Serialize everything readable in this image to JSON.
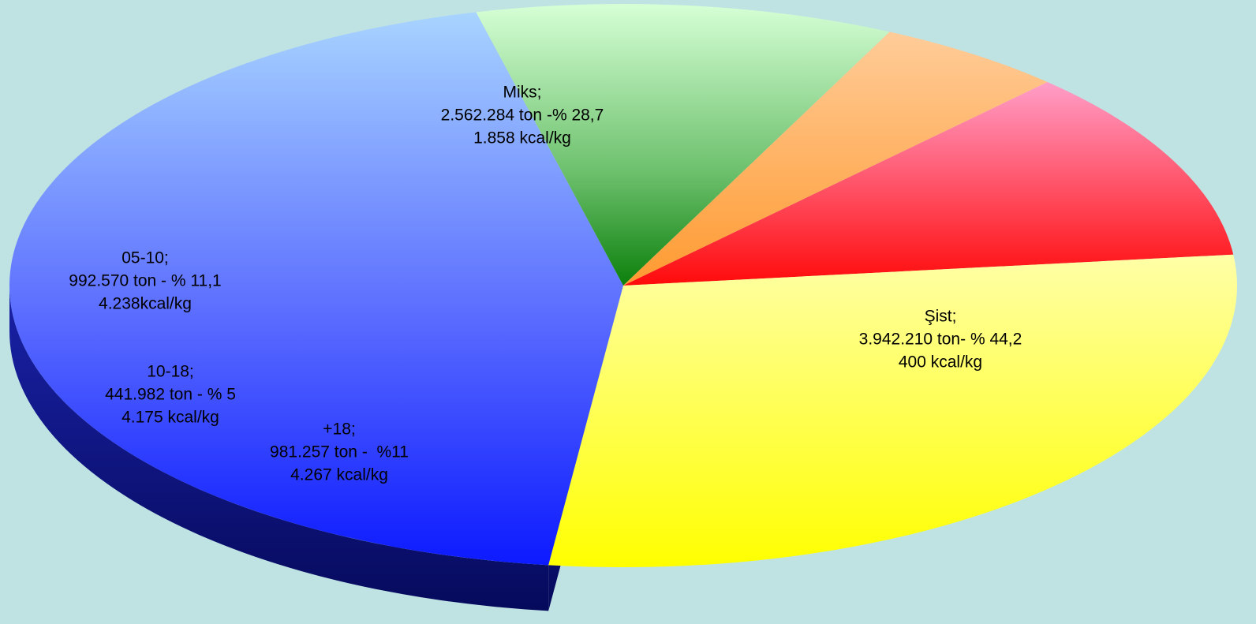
{
  "chart_data": {
    "type": "pie",
    "style": "3d-exploded-ellipse",
    "title": "",
    "slices": [
      {
        "name": "Şist",
        "label_lines": [
          "Şist;",
          "3.942.210 ton- % 44,2",
          "400 kcal/kg"
        ],
        "tonnage": 3942210,
        "percent": 44.2,
        "kcal_per_kg": 400,
        "color": "#3a4cff"
      },
      {
        "name": "+18",
        "label_lines": [
          "+18;",
          "981.257 ton -  %11",
          "4.267 kcal/kg"
        ],
        "tonnage": 981257,
        "percent": 11,
        "kcal_per_kg": 4267,
        "color": "#2e9a2e"
      },
      {
        "name": "10-18",
        "label_lines": [
          "10-18;",
          "441.982 ton - % 5",
          "4.175 kcal/kg"
        ],
        "tonnage": 441982,
        "percent": 5,
        "kcal_per_kg": 4175,
        "color": "#ffa24a"
      },
      {
        "name": "05-10",
        "label_lines": [
          "05-10;",
          "992.570 ton - % 11,1",
          "4.238kcal/kg"
        ],
        "tonnage": 992570,
        "percent": 11.1,
        "kcal_per_kg": 4238,
        "color": "#ff3f6a"
      },
      {
        "name": "Miks",
        "label_lines": [
          "Miks;",
          "2.562.284 ton -% 28,7",
          "1.858 kcal/kg"
        ],
        "tonnage": 2562284,
        "percent": 28.7,
        "kcal_per_kg": 1858,
        "color": "#ffff3a"
      }
    ],
    "legend": "none",
    "background_color": "#bfe3e3"
  }
}
